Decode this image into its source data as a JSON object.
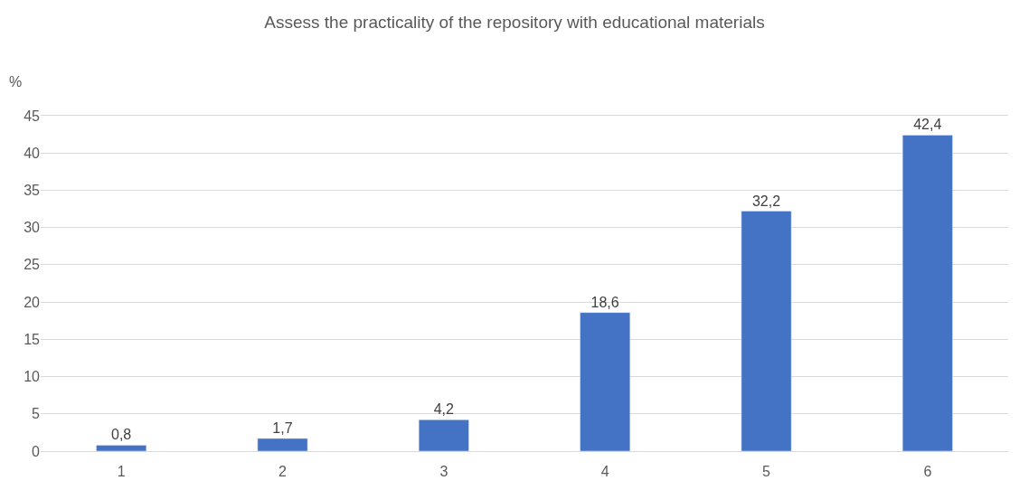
{
  "chart_data": {
    "type": "bar",
    "title": "Assess the practicality of the repository with educational materials",
    "ylabel": "%",
    "categories": [
      "1",
      "2",
      "3",
      "4",
      "5",
      "6"
    ],
    "values": [
      0.8,
      1.7,
      4.2,
      18.6,
      32.2,
      42.4
    ],
    "value_labels": [
      "0,8",
      "1,7",
      "4,2",
      "18,6",
      "32,2",
      "42,4"
    ],
    "color": "#4472c4",
    "ylim": [
      0,
      45
    ],
    "yticks": [
      0,
      5,
      10,
      15,
      20,
      25,
      30,
      35,
      40,
      45
    ],
    "grid": "y"
  }
}
